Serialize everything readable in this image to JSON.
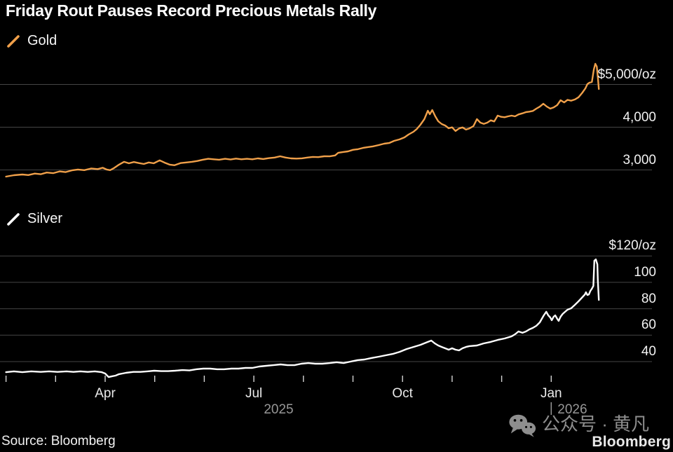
{
  "title": "Friday Rout Pauses Record Precious Metals Rally",
  "source": "Source: Bloomberg",
  "branding": {
    "logo": "Bloomberg"
  },
  "watermark": {
    "icon": "wechat-icon",
    "text": "公众号 · 黄凡"
  },
  "colors": {
    "background": "#000000",
    "gold_line": "#F0A04A",
    "silver_line": "#FFFFFF",
    "grid": "#454545",
    "tick": "#D4D4D4",
    "axis_text": "#F2F2F2",
    "year_text": "#979797",
    "watermark_text": "#8E8E8E"
  },
  "x_axis": {
    "start_month": "2025-02",
    "months_total": 12,
    "tick_month_indices": [
      0,
      1,
      2,
      3,
      4,
      5,
      6,
      7,
      8,
      9,
      10,
      11
    ],
    "month_labels": [
      {
        "label": "Apr",
        "month_index": 2
      },
      {
        "label": "Jul",
        "month_index": 5
      },
      {
        "label": "Oct",
        "month_index": 8
      },
      {
        "label": "Jan",
        "month_index": 11
      }
    ],
    "year_labels": [
      {
        "label": "2025",
        "month_index": 5.5,
        "divider_bar": false
      },
      {
        "label": "2026",
        "month_index": 11,
        "divider_bar": true
      }
    ]
  },
  "chart_data": [
    {
      "type": "line",
      "name": "Gold",
      "color": "#F0A04A",
      "x_unit": "months since 2025-02-01",
      "ylabel": "US dollars per ounce",
      "y_axis": {
        "gridline_values": [
          5000,
          4000,
          3000
        ],
        "gridline_labels": [
          "$5,000/oz",
          "4,000",
          "3,000"
        ]
      },
      "points": [
        [
          0,
          2845
        ],
        [
          0.16,
          2877
        ],
        [
          0.33,
          2893
        ],
        [
          0.45,
          2880
        ],
        [
          0.58,
          2915
        ],
        [
          0.7,
          2900
        ],
        [
          0.82,
          2940
        ],
        [
          0.95,
          2925
        ],
        [
          1.08,
          2965
        ],
        [
          1.2,
          2950
        ],
        [
          1.33,
          2990
        ],
        [
          1.45,
          3010
        ],
        [
          1.58,
          2995
        ],
        [
          1.72,
          3035
        ],
        [
          1.85,
          3020
        ],
        [
          1.95,
          3050
        ],
        [
          2.03,
          3010
        ],
        [
          2.1,
          2995
        ],
        [
          2.18,
          3045
        ],
        [
          2.28,
          3125
        ],
        [
          2.38,
          3190
        ],
        [
          2.48,
          3155
        ],
        [
          2.58,
          3185
        ],
        [
          2.68,
          3160
        ],
        [
          2.78,
          3140
        ],
        [
          2.88,
          3175
        ],
        [
          2.98,
          3155
        ],
        [
          3.1,
          3225
        ],
        [
          3.2,
          3170
        ],
        [
          3.3,
          3125
        ],
        [
          3.4,
          3110
        ],
        [
          3.52,
          3160
        ],
        [
          3.64,
          3175
        ],
        [
          3.75,
          3190
        ],
        [
          3.86,
          3210
        ],
        [
          3.97,
          3240
        ],
        [
          4.08,
          3260
        ],
        [
          4.19,
          3250
        ],
        [
          4.3,
          3240
        ],
        [
          4.42,
          3260
        ],
        [
          4.53,
          3245
        ],
        [
          4.64,
          3265
        ],
        [
          4.75,
          3250
        ],
        [
          4.86,
          3260
        ],
        [
          4.97,
          3250
        ],
        [
          5.08,
          3270
        ],
        [
          5.19,
          3255
        ],
        [
          5.3,
          3275
        ],
        [
          5.42,
          3290
        ],
        [
          5.53,
          3320
        ],
        [
          5.64,
          3290
        ],
        [
          5.75,
          3270
        ],
        [
          5.86,
          3265
        ],
        [
          5.97,
          3272
        ],
        [
          6.08,
          3290
        ],
        [
          6.19,
          3305
        ],
        [
          6.3,
          3300
        ],
        [
          6.42,
          3320
        ],
        [
          6.53,
          3318
        ],
        [
          6.64,
          3340
        ],
        [
          6.7,
          3400
        ],
        [
          6.8,
          3420
        ],
        [
          6.9,
          3435
        ],
        [
          7,
          3470
        ],
        [
          7.1,
          3485
        ],
        [
          7.2,
          3515
        ],
        [
          7.3,
          3535
        ],
        [
          7.4,
          3550
        ],
        [
          7.52,
          3582
        ],
        [
          7.63,
          3615
        ],
        [
          7.73,
          3630
        ],
        [
          7.83,
          3680
        ],
        [
          7.94,
          3715
        ],
        [
          8.04,
          3762
        ],
        [
          8.12,
          3828
        ],
        [
          8.22,
          3893
        ],
        [
          8.29,
          3960
        ],
        [
          8.36,
          4057
        ],
        [
          8.44,
          4188
        ],
        [
          8.51,
          4385
        ],
        [
          8.55,
          4303
        ],
        [
          8.6,
          4402
        ],
        [
          8.66,
          4254
        ],
        [
          8.72,
          4139
        ],
        [
          8.79,
          4074
        ],
        [
          8.86,
          4040
        ],
        [
          8.93,
          3975
        ],
        [
          9,
          3997
        ],
        [
          9.07,
          3912
        ],
        [
          9.14,
          3970
        ],
        [
          9.21,
          3995
        ],
        [
          9.28,
          3945
        ],
        [
          9.35,
          3972
        ],
        [
          9.43,
          4025
        ],
        [
          9.5,
          4188
        ],
        [
          9.57,
          4107
        ],
        [
          9.64,
          4079
        ],
        [
          9.71,
          4107
        ],
        [
          9.78,
          4160
        ],
        [
          9.85,
          4134
        ],
        [
          9.92,
          4270
        ],
        [
          9.99,
          4243
        ],
        [
          10.06,
          4233
        ],
        [
          10.13,
          4254
        ],
        [
          10.2,
          4270
        ],
        [
          10.27,
          4254
        ],
        [
          10.34,
          4298
        ],
        [
          10.42,
          4325
        ],
        [
          10.49,
          4352
        ],
        [
          10.56,
          4364
        ],
        [
          10.63,
          4380
        ],
        [
          10.7,
          4434
        ],
        [
          10.77,
          4480
        ],
        [
          10.84,
          4549
        ],
        [
          10.91,
          4484
        ],
        [
          10.98,
          4434
        ],
        [
          11.05,
          4462
        ],
        [
          11.12,
          4516
        ],
        [
          11.19,
          4631
        ],
        [
          11.26,
          4580
        ],
        [
          11.33,
          4640
        ],
        [
          11.4,
          4620
        ],
        [
          11.48,
          4650
        ],
        [
          11.55,
          4700
        ],
        [
          11.62,
          4795
        ],
        [
          11.69,
          4910
        ],
        [
          11.73,
          5008
        ],
        [
          11.77,
          5041
        ],
        [
          11.82,
          5057
        ],
        [
          11.86,
          5352
        ],
        [
          11.89,
          5484
        ],
        [
          11.92,
          5418
        ],
        [
          11.94,
          5172
        ],
        [
          11.96,
          4893
        ]
      ]
    },
    {
      "type": "line",
      "name": "Silver",
      "color": "#FFFFFF",
      "x_unit": "months since 2025-02-01",
      "ylabel": "US dollars per ounce",
      "y_axis": {
        "gridline_values": [
          120,
          100,
          80,
          60,
          40
        ],
        "gridline_labels": [
          "$120/oz",
          "100",
          "80",
          "60",
          "40"
        ]
      },
      "points": [
        [
          0,
          32
        ],
        [
          0.16,
          32.6
        ],
        [
          0.33,
          32
        ],
        [
          0.51,
          32.6
        ],
        [
          0.7,
          32.2
        ],
        [
          0.87,
          32.6
        ],
        [
          1.04,
          32.2
        ],
        [
          1.22,
          32.6
        ],
        [
          1.36,
          32.2
        ],
        [
          1.5,
          32.6
        ],
        [
          1.65,
          32.2
        ],
        [
          1.79,
          32.6
        ],
        [
          1.93,
          32
        ],
        [
          2,
          31
        ],
        [
          2.07,
          28.3
        ],
        [
          2.14,
          28.9
        ],
        [
          2.21,
          29.4
        ],
        [
          2.28,
          30.5
        ],
        [
          2.35,
          31
        ],
        [
          2.42,
          31.5
        ],
        [
          2.57,
          32.2
        ],
        [
          2.71,
          32.2
        ],
        [
          2.85,
          32.6
        ],
        [
          2.99,
          33.1
        ],
        [
          3.13,
          32.8
        ],
        [
          3.27,
          32.8
        ],
        [
          3.41,
          33.1
        ],
        [
          3.56,
          33.6
        ],
        [
          3.7,
          33.3
        ],
        [
          3.84,
          34.2
        ],
        [
          3.98,
          34.7
        ],
        [
          4.12,
          34.7
        ],
        [
          4.26,
          34.2
        ],
        [
          4.4,
          34.2
        ],
        [
          4.55,
          34.7
        ],
        [
          4.69,
          34.7
        ],
        [
          4.83,
          35.2
        ],
        [
          4.97,
          35.2
        ],
        [
          5.11,
          36.3
        ],
        [
          5.25,
          36.8
        ],
        [
          5.39,
          37.3
        ],
        [
          5.54,
          37.9
        ],
        [
          5.68,
          37.3
        ],
        [
          5.82,
          37.3
        ],
        [
          5.96,
          38.4
        ],
        [
          6.1,
          38.9
        ],
        [
          6.24,
          38.4
        ],
        [
          6.38,
          38.4
        ],
        [
          6.53,
          38.9
        ],
        [
          6.67,
          39.5
        ],
        [
          6.81,
          38.9
        ],
        [
          6.95,
          40
        ],
        [
          7.09,
          41.1
        ],
        [
          7.23,
          41.6
        ],
        [
          7.37,
          42.7
        ],
        [
          7.52,
          43.7
        ],
        [
          7.66,
          44.8
        ],
        [
          7.8,
          45.8
        ],
        [
          7.94,
          47.4
        ],
        [
          8.08,
          49.5
        ],
        [
          8.22,
          51.1
        ],
        [
          8.36,
          52.7
        ],
        [
          8.51,
          54.9
        ],
        [
          8.58,
          55.9
        ],
        [
          8.65,
          53.8
        ],
        [
          8.72,
          52.2
        ],
        [
          8.79,
          51.1
        ],
        [
          8.86,
          50.1
        ],
        [
          8.93,
          49
        ],
        [
          9,
          50.1
        ],
        [
          9.07,
          49
        ],
        [
          9.14,
          48.5
        ],
        [
          9.21,
          50.1
        ],
        [
          9.28,
          51.1
        ],
        [
          9.35,
          51.7
        ],
        [
          9.5,
          52.2
        ],
        [
          9.64,
          53.8
        ],
        [
          9.78,
          54.9
        ],
        [
          9.92,
          56.4
        ],
        [
          10.06,
          57.5
        ],
        [
          10.2,
          59.1
        ],
        [
          10.27,
          60.7
        ],
        [
          10.34,
          62.8
        ],
        [
          10.42,
          61.8
        ],
        [
          10.49,
          62.8
        ],
        [
          10.56,
          64.4
        ],
        [
          10.63,
          65.5
        ],
        [
          10.7,
          67.1
        ],
        [
          10.77,
          69.7
        ],
        [
          10.81,
          72.4
        ],
        [
          10.85,
          75
        ],
        [
          10.9,
          77.7
        ],
        [
          10.94,
          75
        ],
        [
          10.98,
          73.4
        ],
        [
          11.01,
          71.3
        ],
        [
          11.05,
          74
        ],
        [
          11.08,
          75
        ],
        [
          11.12,
          72.4
        ],
        [
          11.15,
          70.8
        ],
        [
          11.19,
          74
        ],
        [
          11.23,
          76.1
        ],
        [
          11.28,
          77.7
        ],
        [
          11.33,
          79.3
        ],
        [
          11.4,
          80.3
        ],
        [
          11.48,
          83
        ],
        [
          11.55,
          85.6
        ],
        [
          11.59,
          87.2
        ],
        [
          11.63,
          88.8
        ],
        [
          11.68,
          90.9
        ],
        [
          11.7,
          92.5
        ],
        [
          11.73,
          90.4
        ],
        [
          11.76,
          90.9
        ],
        [
          11.79,
          93.6
        ],
        [
          11.82,
          95.2
        ],
        [
          11.85,
          97.3
        ],
        [
          11.87,
          116.4
        ],
        [
          11.9,
          117.4
        ],
        [
          11.93,
          113.7
        ],
        [
          11.94,
          101.5
        ],
        [
          11.96,
          86.7
        ]
      ]
    }
  ]
}
